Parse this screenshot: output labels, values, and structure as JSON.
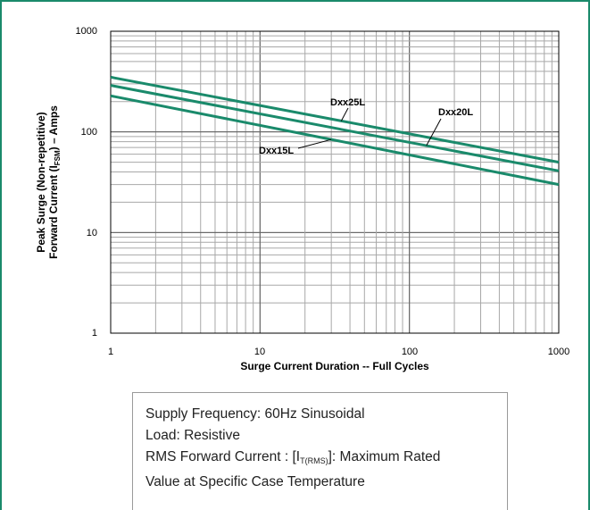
{
  "chart_data": {
    "type": "line",
    "xlabel": "Surge Current Duration -- Full Cycles",
    "ylabel_line1": "Peak Surge (Non-repetitive)",
    "ylabel_line2_pre": "Forward Current (I",
    "ylabel_line2_sub": "FSM",
    "ylabel_line2_post": ") – Amps",
    "xscale": "log",
    "yscale": "log",
    "xlim": [
      1,
      1000
    ],
    "ylim": [
      1,
      1000
    ],
    "x_ticks": [
      "1",
      "10",
      "100",
      "1000"
    ],
    "y_ticks": [
      "1",
      "10",
      "100",
      "1000"
    ],
    "grid": true,
    "line_color": "#1a8a6b",
    "series": [
      {
        "name": "Dxx25L",
        "x": [
          1,
          1000
        ],
        "y": [
          350,
          50
        ]
      },
      {
        "name": "Dxx20L",
        "x": [
          1,
          1000
        ],
        "y": [
          290,
          41
        ]
      },
      {
        "name": "Dxx15L",
        "x": [
          1,
          1000
        ],
        "y": [
          228,
          30
        ]
      }
    ]
  },
  "notes": {
    "line1": "Supply Frequency: 60Hz Sinusoidal",
    "line2": "Load: Resistive",
    "line3_pre": "RMS Forward Current : [I",
    "line3_sub": "T(RMS)",
    "line3_post": "]: Maximum Rated",
    "line4": "Value at Specific Case Temperature"
  }
}
